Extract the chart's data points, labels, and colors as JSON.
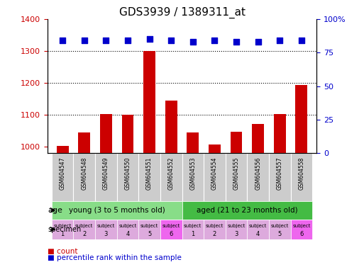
{
  "title": "GDS3939 / 1389311_at",
  "samples": [
    "GSM604547",
    "GSM604548",
    "GSM604549",
    "GSM604550",
    "GSM604551",
    "GSM604552",
    "GSM604553",
    "GSM604554",
    "GSM604555",
    "GSM604556",
    "GSM604557",
    "GSM604558"
  ],
  "counts": [
    1003,
    1045,
    1102,
    1100,
    1300,
    1145,
    1045,
    1008,
    1048,
    1072,
    1103,
    1193
  ],
  "percentile_ranks": [
    84,
    84,
    84,
    84,
    85,
    84,
    83,
    84,
    83,
    83,
    84,
    84
  ],
  "ylim_left": [
    980,
    1400
  ],
  "ylim_right": [
    0,
    100
  ],
  "yticks_left": [
    1000,
    1100,
    1200,
    1300,
    1400
  ],
  "yticks_right": [
    0,
    25,
    50,
    75,
    100
  ],
  "bar_color": "#cc0000",
  "dot_color": "#0000cc",
  "age_groups": [
    {
      "label": "young (3 to 5 months old)",
      "start": 0,
      "end": 6,
      "color": "#88dd88"
    },
    {
      "label": "aged (21 to 23 months old)",
      "start": 6,
      "end": 12,
      "color": "#44bb44"
    }
  ],
  "specimen_labels": [
    "subject\n1",
    "subject\n2",
    "subject\n3",
    "subject\n4",
    "subject\n5",
    "subject\n6",
    "subject\n1",
    "subject\n2",
    "subject\n3",
    "subject\n4",
    "subject\n5",
    "subject\n6"
  ],
  "specimen_colors": [
    "#ddaadd",
    "#ddaadd",
    "#ddaadd",
    "#ddaadd",
    "#ddaadd",
    "#ee66ee",
    "#ddaadd",
    "#ddaadd",
    "#ddaadd",
    "#ddaadd",
    "#ddaadd",
    "#ee66ee"
  ],
  "xlabel_color": "#cc0000",
  "right_axis_color": "#0000cc",
  "title_fontsize": 11,
  "tick_fontsize": 8,
  "bar_width": 0.55,
  "gsm_bg_color": "#cccccc",
  "dot_size": 30
}
